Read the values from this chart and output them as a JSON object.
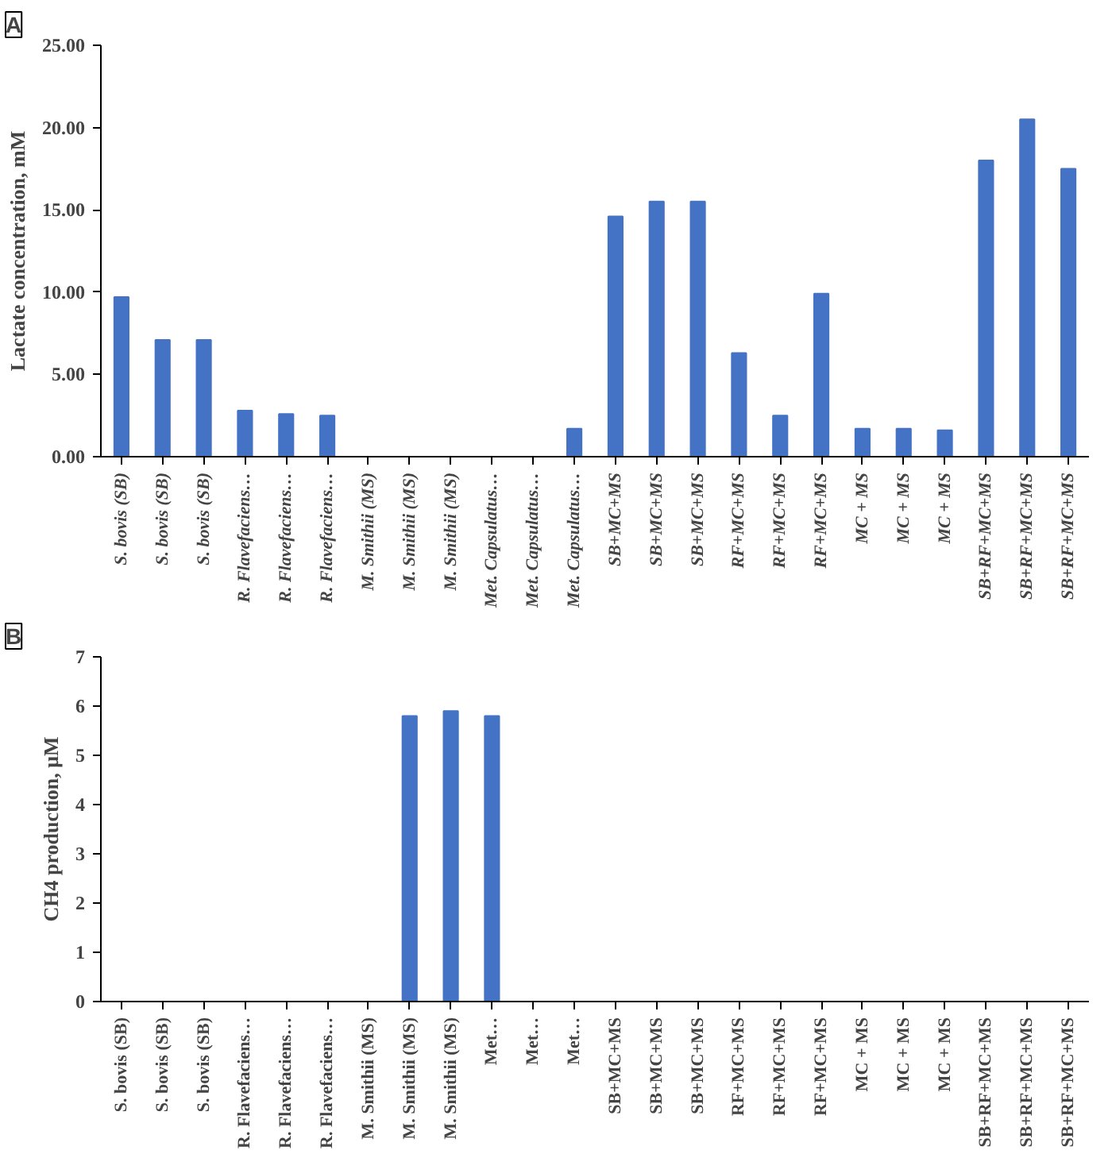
{
  "chart_data": [
    {
      "type": "bar",
      "title": "A",
      "ylabel": "Lactate concentration, mM",
      "categories": [
        "S. bovis (SB)",
        "S. bovis (SB)",
        "S. bovis (SB)",
        "R. Flavefaciens…",
        "R. Flavefaciens…",
        "R. Flavefaciens…",
        "M. Smithii (MS)",
        "M. Smithii (MS)",
        "M. Smithii (MS)",
        "Met. Capsulatus…",
        "Met. Capsulatus…",
        "Met. Capsulatus…",
        "SB+MC+MS",
        "SB+MC+MS",
        "SB+MC+MS",
        "RF+MC+MS",
        "RF+MC+MS",
        "RF+MC+MS",
        "MC + MS",
        "MC + MS",
        "MC + MS",
        "SB+RF+MC+MS",
        "SB+RF+MC+MS",
        "SB+RF+MC+MS"
      ],
      "values": [
        9.7,
        7.1,
        7.1,
        2.8,
        2.6,
        2.5,
        0,
        0,
        0,
        0,
        0,
        1.7,
        14.6,
        15.5,
        15.5,
        6.3,
        2.5,
        9.9,
        1.7,
        1.7,
        1.6,
        18.0,
        20.5,
        17.5
      ],
      "color": "#4472c4",
      "ylim": [
        0,
        25
      ],
      "yticks": [
        {
          "value": 0,
          "label": "0.00"
        },
        {
          "value": 5,
          "label": "5.00"
        },
        {
          "value": 10,
          "label": "10.00"
        },
        {
          "value": 15,
          "label": "15.00"
        },
        {
          "value": 20,
          "label": "20.00"
        },
        {
          "value": 25,
          "label": "25.00"
        }
      ],
      "grid": false
    },
    {
      "type": "bar",
      "title": "B",
      "ylabel": "CH4 production, μM",
      "categories": [
        "S. bovis (SB)",
        "S. bovis (SB)",
        "S. bovis (SB)",
        "R. Flavefaciens…",
        "R. Flavefaciens…",
        "R. Flavefaciens…",
        "M. Smithii (MS)",
        "M. Smithii (MS)",
        "M. Smithii (MS)",
        "Met…",
        "Met…",
        "Met…",
        "SB+MC+MS",
        "SB+MC+MS",
        "SB+MC+MS",
        "RF+MC+MS",
        "RF+MC+MS",
        "RF+MC+MS",
        "MC + MS",
        "MC + MS",
        "MC + MS",
        "SB+RF+MC+MS",
        "SB+RF+MC+MS",
        "SB+RF+MC+MS"
      ],
      "values": [
        0,
        0,
        0,
        0,
        0,
        0,
        0,
        5.8,
        5.9,
        5.8,
        0,
        0,
        0,
        0,
        0,
        0,
        0,
        0,
        0,
        0,
        0,
        0,
        0,
        0
      ],
      "color": "#4472c4",
      "ylim": [
        0,
        7
      ],
      "yticks": [
        0,
        1,
        2,
        3,
        4,
        5,
        6,
        7
      ],
      "grid": false
    }
  ]
}
